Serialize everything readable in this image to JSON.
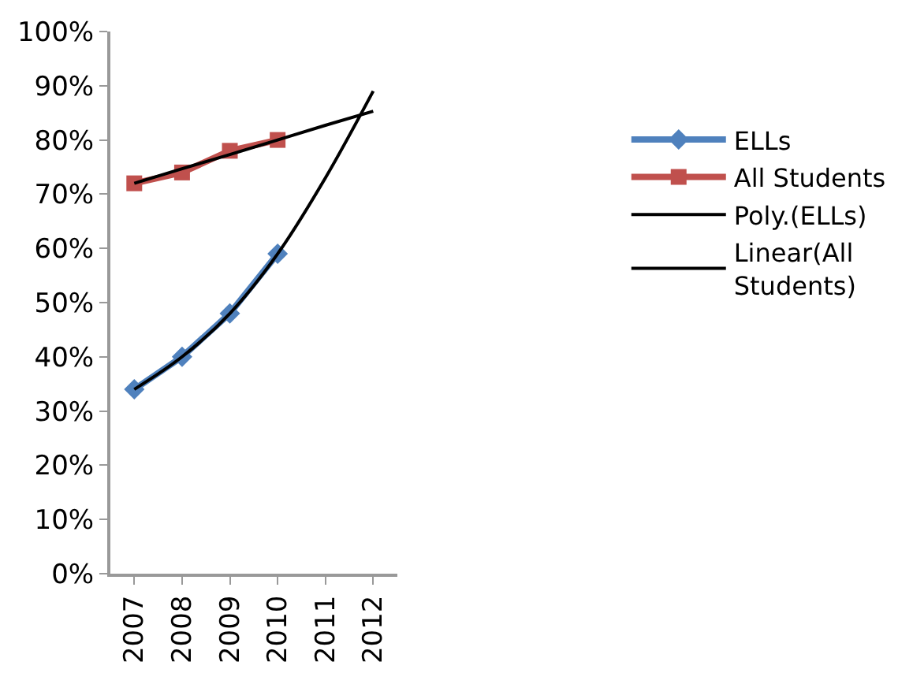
{
  "chart_data": {
    "type": "line",
    "categories": [
      "2007",
      "2008",
      "2009",
      "2010",
      "2011",
      "2012"
    ],
    "series": [
      {
        "name": "ELLs",
        "color": "#4f81bd",
        "values": [
          34,
          40,
          48,
          59,
          null,
          null
        ],
        "marker": "diamond"
      },
      {
        "name": "All Students",
        "color": "#c0504d",
        "values": [
          72,
          74,
          78,
          80,
          null,
          null
        ],
        "marker": "square"
      },
      {
        "name": "Poly.(ELLs)",
        "color": "#000000",
        "values": [
          34,
          40,
          48,
          59,
          73,
          89
        ],
        "marker": "none"
      },
      {
        "name": "Linear(All\nStudents)",
        "color": "#000000",
        "values": [
          72,
          74.7,
          77.3,
          80,
          82.7,
          85.3
        ],
        "marker": "none"
      }
    ],
    "ylim": [
      0,
      100
    ],
    "yticks": [
      {
        "value": 0,
        "label": "0%"
      },
      {
        "value": 10,
        "label": "10%"
      },
      {
        "value": 20,
        "label": "20%"
      },
      {
        "value": 30,
        "label": "30%"
      },
      {
        "value": 40,
        "label": "40%"
      },
      {
        "value": 50,
        "label": "50%"
      },
      {
        "value": 60,
        "label": "60%"
      },
      {
        "value": 70,
        "label": "70%"
      },
      {
        "value": 80,
        "label": "80%"
      },
      {
        "value": 90,
        "label": "90%"
      },
      {
        "value": 100,
        "label": "100%"
      }
    ],
    "legend": "right",
    "line_style": "solid"
  }
}
